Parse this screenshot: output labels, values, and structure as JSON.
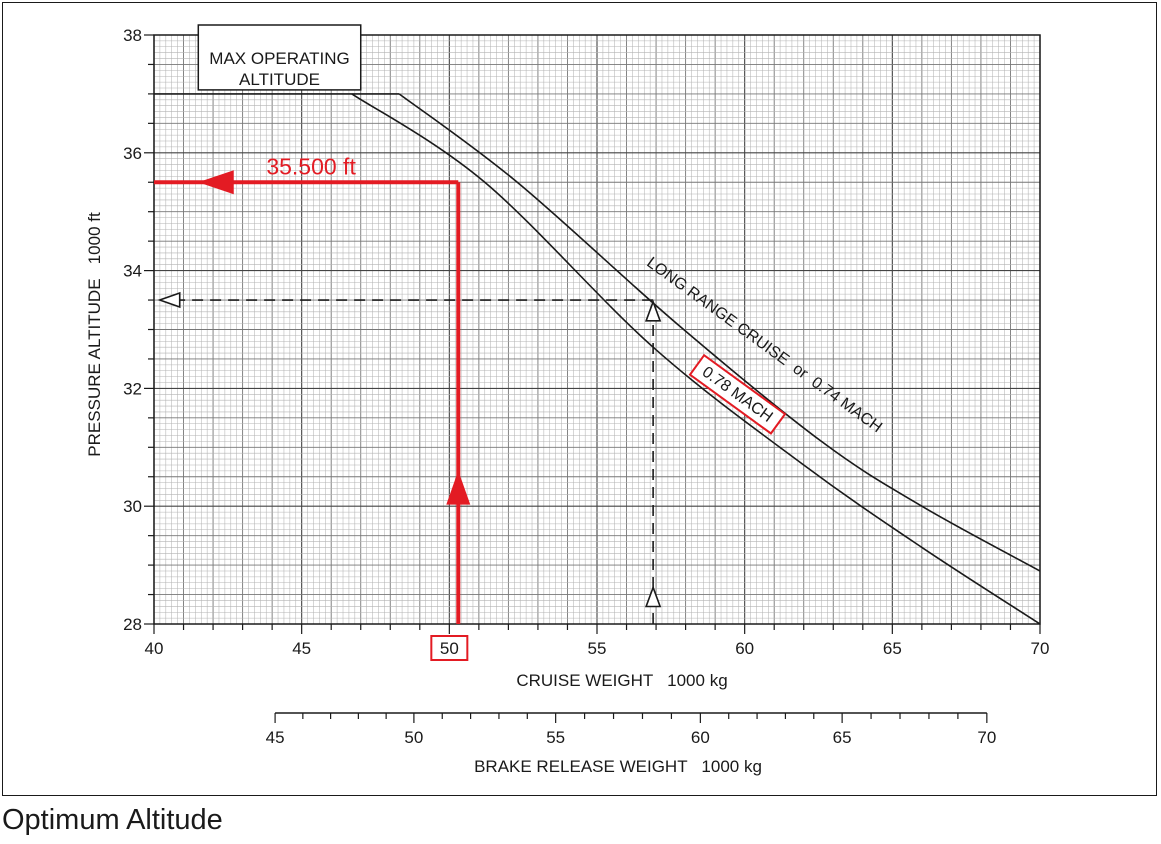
{
  "caption": "Optimum Altitude",
  "chart_data": {
    "type": "line",
    "title": "",
    "xlabel": "CRUISE WEIGHT   1000 kg",
    "ylabel": "PRESSURE ALTITUDE   1000 ft",
    "xlim": [
      40,
      70
    ],
    "ylim": [
      28,
      38
    ],
    "x_ticks": [
      40,
      45,
      50,
      55,
      60,
      65,
      70
    ],
    "y_ticks": [
      28,
      30,
      32,
      34,
      36,
      38
    ],
    "grid": true,
    "secondary_axis": {
      "label": "BRAKE RELEASE WEIGHT   1000 kg",
      "ticks": [
        45,
        50,
        55,
        60,
        65,
        70
      ],
      "map_to_cruise": [
        [
          45,
          44.1
        ],
        [
          50,
          48.8
        ],
        [
          55,
          53.6
        ],
        [
          60,
          58.5
        ],
        [
          65,
          63.3
        ],
        [
          70,
          68.2
        ]
      ]
    },
    "series": [
      {
        "name": "0.78 MACH",
        "x": [
          46.7,
          51.2,
          56.9,
          62.0,
          66.0,
          70.0
        ],
        "y": [
          37.0,
          35.5,
          32.7,
          30.7,
          29.3,
          28.0
        ],
        "highlighted": true
      },
      {
        "name": "LONG RANGE CRUISE  or  0.74 MACH",
        "x": [
          48.3,
          52.3,
          57.7,
          62.6,
          66.0,
          70.0
        ],
        "y": [
          37.0,
          35.5,
          33.1,
          31.1,
          30.0,
          28.9
        ]
      }
    ],
    "max_operating_altitude": {
      "label_lines": [
        "MAX OPERATING",
        "ALTITUDE"
      ],
      "y": 37.0,
      "x_start": 40,
      "x_end": 48.3
    },
    "annotations": [
      {
        "kind": "red-path",
        "label": "35.500 ft",
        "from_x": 50.1,
        "level_y": 35.5,
        "x_label": "50"
      },
      {
        "kind": "dashed-path",
        "from_x": 56.9,
        "level_y": 33.5
      }
    ]
  }
}
